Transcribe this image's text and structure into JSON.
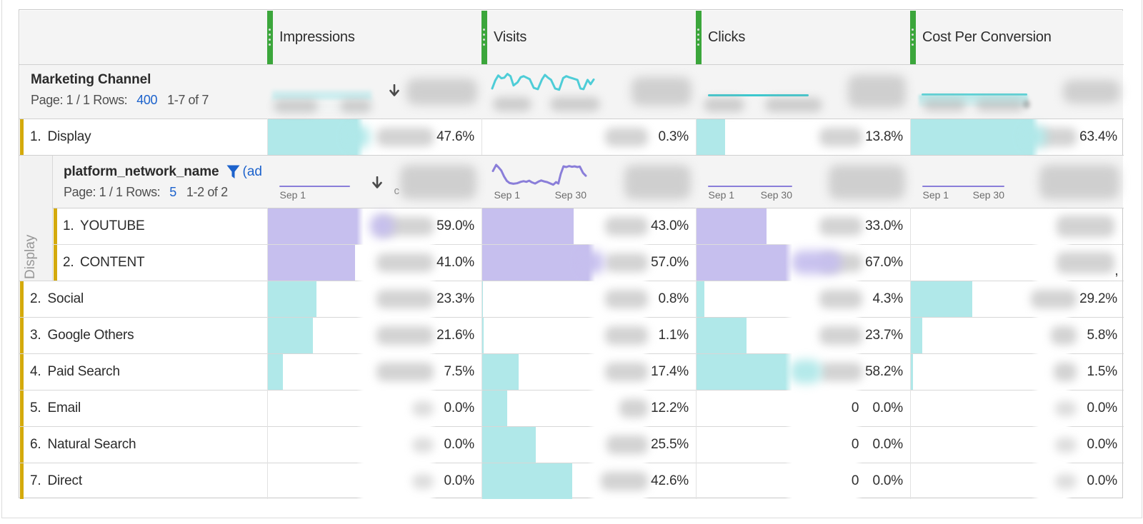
{
  "colors": {
    "accent_green": "#3ba63b",
    "bar_cyan": "#b0e8e9",
    "bar_purple": "#c6bfee",
    "spark_cyan": "#4ecdd7",
    "spark_teal": "#3cc8ce",
    "spark_purple": "#8a7ed9",
    "row_marker_yellow": "#d4aa0c",
    "link_blue": "#1c62cc",
    "header_bg": "#f4f4f4",
    "text_dark": "#2c2c2c"
  },
  "columns": [
    {
      "id": "impressions",
      "label": "Impressions",
      "summary": {
        "sorted": true,
        "total_redacted": true,
        "spark": "blurred-area",
        "axis_redacted": true
      },
      "breakdown_summary": {
        "sorted": true,
        "total_redacted": true,
        "spark": "flatline",
        "axis_start": "Sep 1",
        "axis_end": "",
        "stray_text": "c"
      }
    },
    {
      "id": "visits",
      "label": "Visits",
      "summary": {
        "sorted": false,
        "total_redacted": true,
        "spark": "wave",
        "axis_redacted": true
      },
      "breakdown_summary": {
        "sorted": false,
        "total_redacted": true,
        "spark": "wave",
        "axis_start": "Sep 1",
        "axis_end": "Sep 30",
        "stray_text": ""
      }
    },
    {
      "id": "clicks",
      "label": "Clicks",
      "summary": {
        "sorted": false,
        "total_redacted": true,
        "spark": "flatline",
        "axis_redacted": true
      },
      "breakdown_summary": {
        "sorted": false,
        "total_redacted": true,
        "spark": "flatline",
        "axis_start": "Sep 1",
        "axis_end": "Sep 30",
        "stray_text": ""
      }
    },
    {
      "id": "cost_per_conversion",
      "label": "Cost Per Conversion",
      "summary": {
        "sorted": false,
        "total_redacted": true,
        "spark": "flatline-area",
        "axis_redacted": true
      },
      "breakdown_summary": {
        "sorted": false,
        "total_redacted": true,
        "spark": "flatline",
        "axis_start": "Sep 1",
        "axis_end": "Sep 30",
        "stray_text": ""
      }
    }
  ],
  "dimension": {
    "title": "Marketing Channel",
    "page_text": "Page: 1 / 1 Rows:",
    "rows_value": "400",
    "range_text": "1-7 of 7"
  },
  "breakdown": {
    "title": "platform_network_name",
    "filter_icon": "funnel-icon",
    "filter_text": "(ad",
    "parent_label": "Display",
    "page_text": "Page: 1 / 1 Rows:",
    "rows_value": "5",
    "range_text": "1-2 of 2"
  },
  "sparklines": {
    "visits_total": [
      [
        0,
        0.88
      ],
      [
        0.03,
        0.45
      ],
      [
        0.06,
        0.18
      ],
      [
        0.09,
        0.33
      ],
      [
        0.12,
        0.3
      ],
      [
        0.15,
        0.1
      ],
      [
        0.18,
        0.22
      ],
      [
        0.21,
        0.72
      ],
      [
        0.25,
        0.55
      ],
      [
        0.28,
        0.28
      ],
      [
        0.31,
        0.22
      ],
      [
        0.34,
        0.3
      ],
      [
        0.37,
        0.38
      ],
      [
        0.41,
        0.85
      ],
      [
        0.45,
        0.92
      ],
      [
        0.49,
        0.4
      ],
      [
        0.52,
        0.15
      ],
      [
        0.55,
        0.3
      ],
      [
        0.58,
        0.42
      ],
      [
        0.62,
        0.88
      ],
      [
        0.66,
        0.95
      ],
      [
        0.7,
        0.32
      ],
      [
        0.73,
        0.22
      ],
      [
        0.76,
        0.28
      ],
      [
        0.8,
        0.35
      ],
      [
        0.84,
        0.42
      ],
      [
        0.87,
        0.88
      ],
      [
        0.9,
        0.92
      ],
      [
        0.94,
        0.42
      ],
      [
        0.97,
        0.65
      ],
      [
        1,
        0.4
      ]
    ],
    "visits_breakdown": [
      [
        0,
        0.32
      ],
      [
        0.035,
        0.06
      ],
      [
        0.06,
        0.16
      ],
      [
        0.09,
        0.3
      ],
      [
        0.12,
        0.55
      ],
      [
        0.15,
        0.74
      ],
      [
        0.18,
        0.83
      ],
      [
        0.22,
        0.86
      ],
      [
        0.26,
        0.84
      ],
      [
        0.3,
        0.78
      ],
      [
        0.33,
        0.75
      ],
      [
        0.36,
        0.78
      ],
      [
        0.39,
        0.73
      ],
      [
        0.42,
        0.8
      ],
      [
        0.455,
        0.85
      ],
      [
        0.49,
        0.77
      ],
      [
        0.52,
        0.72
      ],
      [
        0.55,
        0.76
      ],
      [
        0.585,
        0.79
      ],
      [
        0.62,
        0.85
      ],
      [
        0.65,
        0.9
      ],
      [
        0.68,
        0.79
      ],
      [
        0.705,
        0.85
      ],
      [
        0.73,
        0.45
      ],
      [
        0.76,
        0.12
      ],
      [
        0.79,
        0.15
      ],
      [
        0.82,
        0.11
      ],
      [
        0.85,
        0.14
      ],
      [
        0.88,
        0.12
      ],
      [
        0.91,
        0.15
      ],
      [
        0.935,
        0.13
      ],
      [
        0.97,
        0.4
      ],
      [
        1,
        0.52
      ]
    ]
  },
  "rows": [
    {
      "rank": "1.",
      "name": "Display",
      "level": 0,
      "cells": [
        {
          "share": "47.6%",
          "bar_pct": 47.6,
          "redacted": "normal",
          "smudge": true
        },
        {
          "share": "0.3%",
          "bar_pct": 0.3,
          "redacted": "normal",
          "smudge": false
        },
        {
          "share": "13.8%",
          "bar_pct": 13.8,
          "redacted": "normal",
          "smudge": false
        },
        {
          "share": "63.4%",
          "bar_pct": 63.4,
          "redacted": "normal",
          "smudge": true
        }
      ]
    },
    {
      "rank": "1.",
      "name": "YOUTUBE",
      "level": 1,
      "cells": [
        {
          "share": "59.0%",
          "bar_pct": 59.0,
          "redacted": "normal",
          "smudge": true
        },
        {
          "share": "43.0%",
          "bar_pct": 43.0,
          "redacted": "normal",
          "smudge": false
        },
        {
          "share": "33.0%",
          "bar_pct": 33.0,
          "redacted": "normal",
          "smudge": false
        },
        {
          "share": "",
          "bar_pct": 0,
          "redacted": "large",
          "smudge": false
        }
      ]
    },
    {
      "rank": "2.",
      "name": "CONTENT",
      "level": 1,
      "cells": [
        {
          "share": "41.0%",
          "bar_pct": 41.0,
          "redacted": "normal",
          "smudge": false
        },
        {
          "share": "57.0%",
          "bar_pct": 57.0,
          "redacted": "normal",
          "smudge": true
        },
        {
          "share": "67.0%",
          "bar_pct": 67.0,
          "redacted": "normal",
          "smudge": true,
          "smudge_w": 70
        },
        {
          "share": "",
          "bar_pct": 0,
          "redacted": "large",
          "smudge": false,
          "trailing": ","
        }
      ]
    },
    {
      "rank": "2.",
      "name": "Social",
      "level": 0,
      "cells": [
        {
          "share": "23.3%",
          "bar_pct": 23.3,
          "redacted": "normal",
          "smudge": false
        },
        {
          "share": "0.8%",
          "bar_pct": 0.8,
          "redacted": "normal",
          "smudge": false
        },
        {
          "share": "4.3%",
          "bar_pct": 4.3,
          "redacted": "normal",
          "smudge": false
        },
        {
          "share": "29.2%",
          "bar_pct": 29.2,
          "redacted": "normal",
          "smudge": false,
          "blob_w": 64
        }
      ]
    },
    {
      "rank": "3.",
      "name": "Google Others",
      "level": 0,
      "cells": [
        {
          "share": "21.6%",
          "bar_pct": 21.6,
          "redacted": "normal",
          "smudge": false
        },
        {
          "share": "1.1%",
          "bar_pct": 1.1,
          "redacted": "normal",
          "smudge": false
        },
        {
          "share": "23.7%",
          "bar_pct": 23.7,
          "redacted": "normal",
          "smudge": false
        },
        {
          "share": "5.8%",
          "bar_pct": 5.8,
          "redacted": "normal",
          "smudge": false,
          "blob_w": 36
        }
      ]
    },
    {
      "rank": "4.",
      "name": "Paid Search",
      "level": 0,
      "cells": [
        {
          "share": "7.5%",
          "bar_pct": 7.5,
          "redacted": "normal",
          "smudge": false
        },
        {
          "share": "17.4%",
          "bar_pct": 17.4,
          "redacted": "normal",
          "smudge": false
        },
        {
          "share": "58.2%",
          "bar_pct": 58.2,
          "redacted": "normal",
          "smudge": true,
          "smudge_w": 44
        },
        {
          "share": "1.5%",
          "bar_pct": 1.5,
          "redacted": "normal",
          "smudge": false,
          "blob_w": 32
        }
      ]
    },
    {
      "rank": "5.",
      "name": "Email",
      "level": 0,
      "cells": [
        {
          "share": "0.0%",
          "bar_pct": 0,
          "redacted": "small",
          "smudge": false
        },
        {
          "share": "12.2%",
          "bar_pct": 12.2,
          "redacted": "normal",
          "smudge": false,
          "blob_w": 40
        },
        {
          "share": "0.0%",
          "bar_pct": 0,
          "redacted": "none",
          "value": "0",
          "smudge": false
        },
        {
          "share": "0.0%",
          "bar_pct": 0,
          "redacted": "small",
          "smudge": false
        }
      ]
    },
    {
      "rank": "6.",
      "name": "Natural Search",
      "level": 0,
      "cells": [
        {
          "share": "0.0%",
          "bar_pct": 0,
          "redacted": "small",
          "smudge": false
        },
        {
          "share": "25.5%",
          "bar_pct": 25.5,
          "redacted": "normal",
          "smudge": false,
          "blob_w": 58
        },
        {
          "share": "0.0%",
          "bar_pct": 0,
          "redacted": "none",
          "value": "0",
          "smudge": false
        },
        {
          "share": "0.0%",
          "bar_pct": 0,
          "redacted": "small",
          "smudge": false
        }
      ]
    },
    {
      "rank": "7.",
      "name": "Direct",
      "level": 0,
      "cells": [
        {
          "share": "0.0%",
          "bar_pct": 0,
          "redacted": "small",
          "smudge": false
        },
        {
          "share": "42.6%",
          "bar_pct": 42.6,
          "redacted": "normal",
          "smudge": false,
          "blob_w": 66
        },
        {
          "share": "0.0%",
          "bar_pct": 0,
          "redacted": "none",
          "value": "0",
          "smudge": false
        },
        {
          "share": "0.0%",
          "bar_pct": 0,
          "redacted": "small",
          "smudge": false
        }
      ]
    }
  ]
}
